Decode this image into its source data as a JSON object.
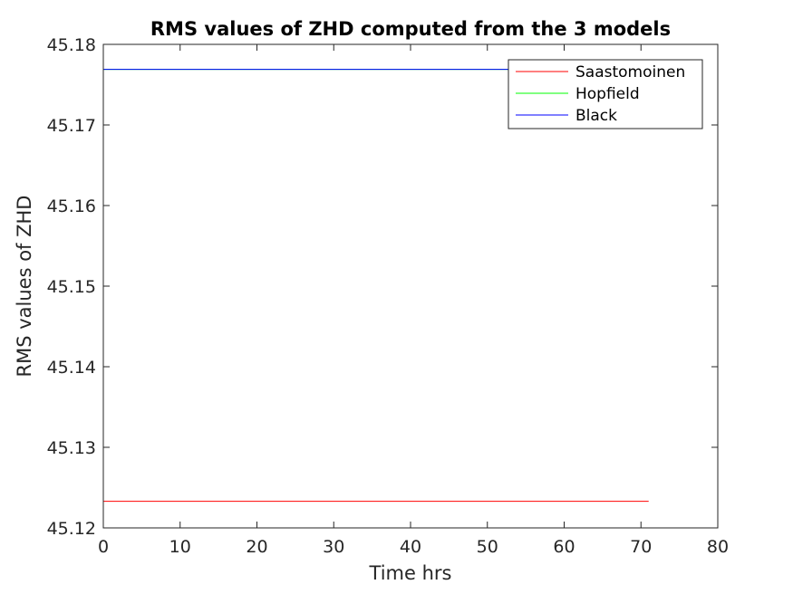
{
  "chart_data": {
    "type": "line",
    "title": "RMS values of ZHD computed from the 3 models",
    "xlabel": "Time hrs",
    "ylabel": "RMS values of ZHD",
    "xlim": [
      0,
      80
    ],
    "ylim": [
      45.12,
      45.18
    ],
    "xticks": [
      "0",
      "10",
      "20",
      "30",
      "40",
      "50",
      "60",
      "70",
      "80"
    ],
    "yticks": [
      "45.12",
      "45.13",
      "45.14",
      "45.15",
      "45.16",
      "45.17",
      "45.18"
    ],
    "grid": false,
    "legend_location": "top-right",
    "series": [
      {
        "name": "Saastomoinen",
        "color": "#ff0000",
        "x": [
          0,
          71
        ],
        "y": [
          45.1233,
          45.1233
        ]
      },
      {
        "name": "Hopfield",
        "color": "#00ff00",
        "x": [
          0,
          71
        ],
        "y": [
          45.1769,
          45.1769
        ]
      },
      {
        "name": "Black",
        "color": "#0000ff",
        "x": [
          0,
          71
        ],
        "y": [
          45.1769,
          45.1769
        ]
      }
    ]
  }
}
